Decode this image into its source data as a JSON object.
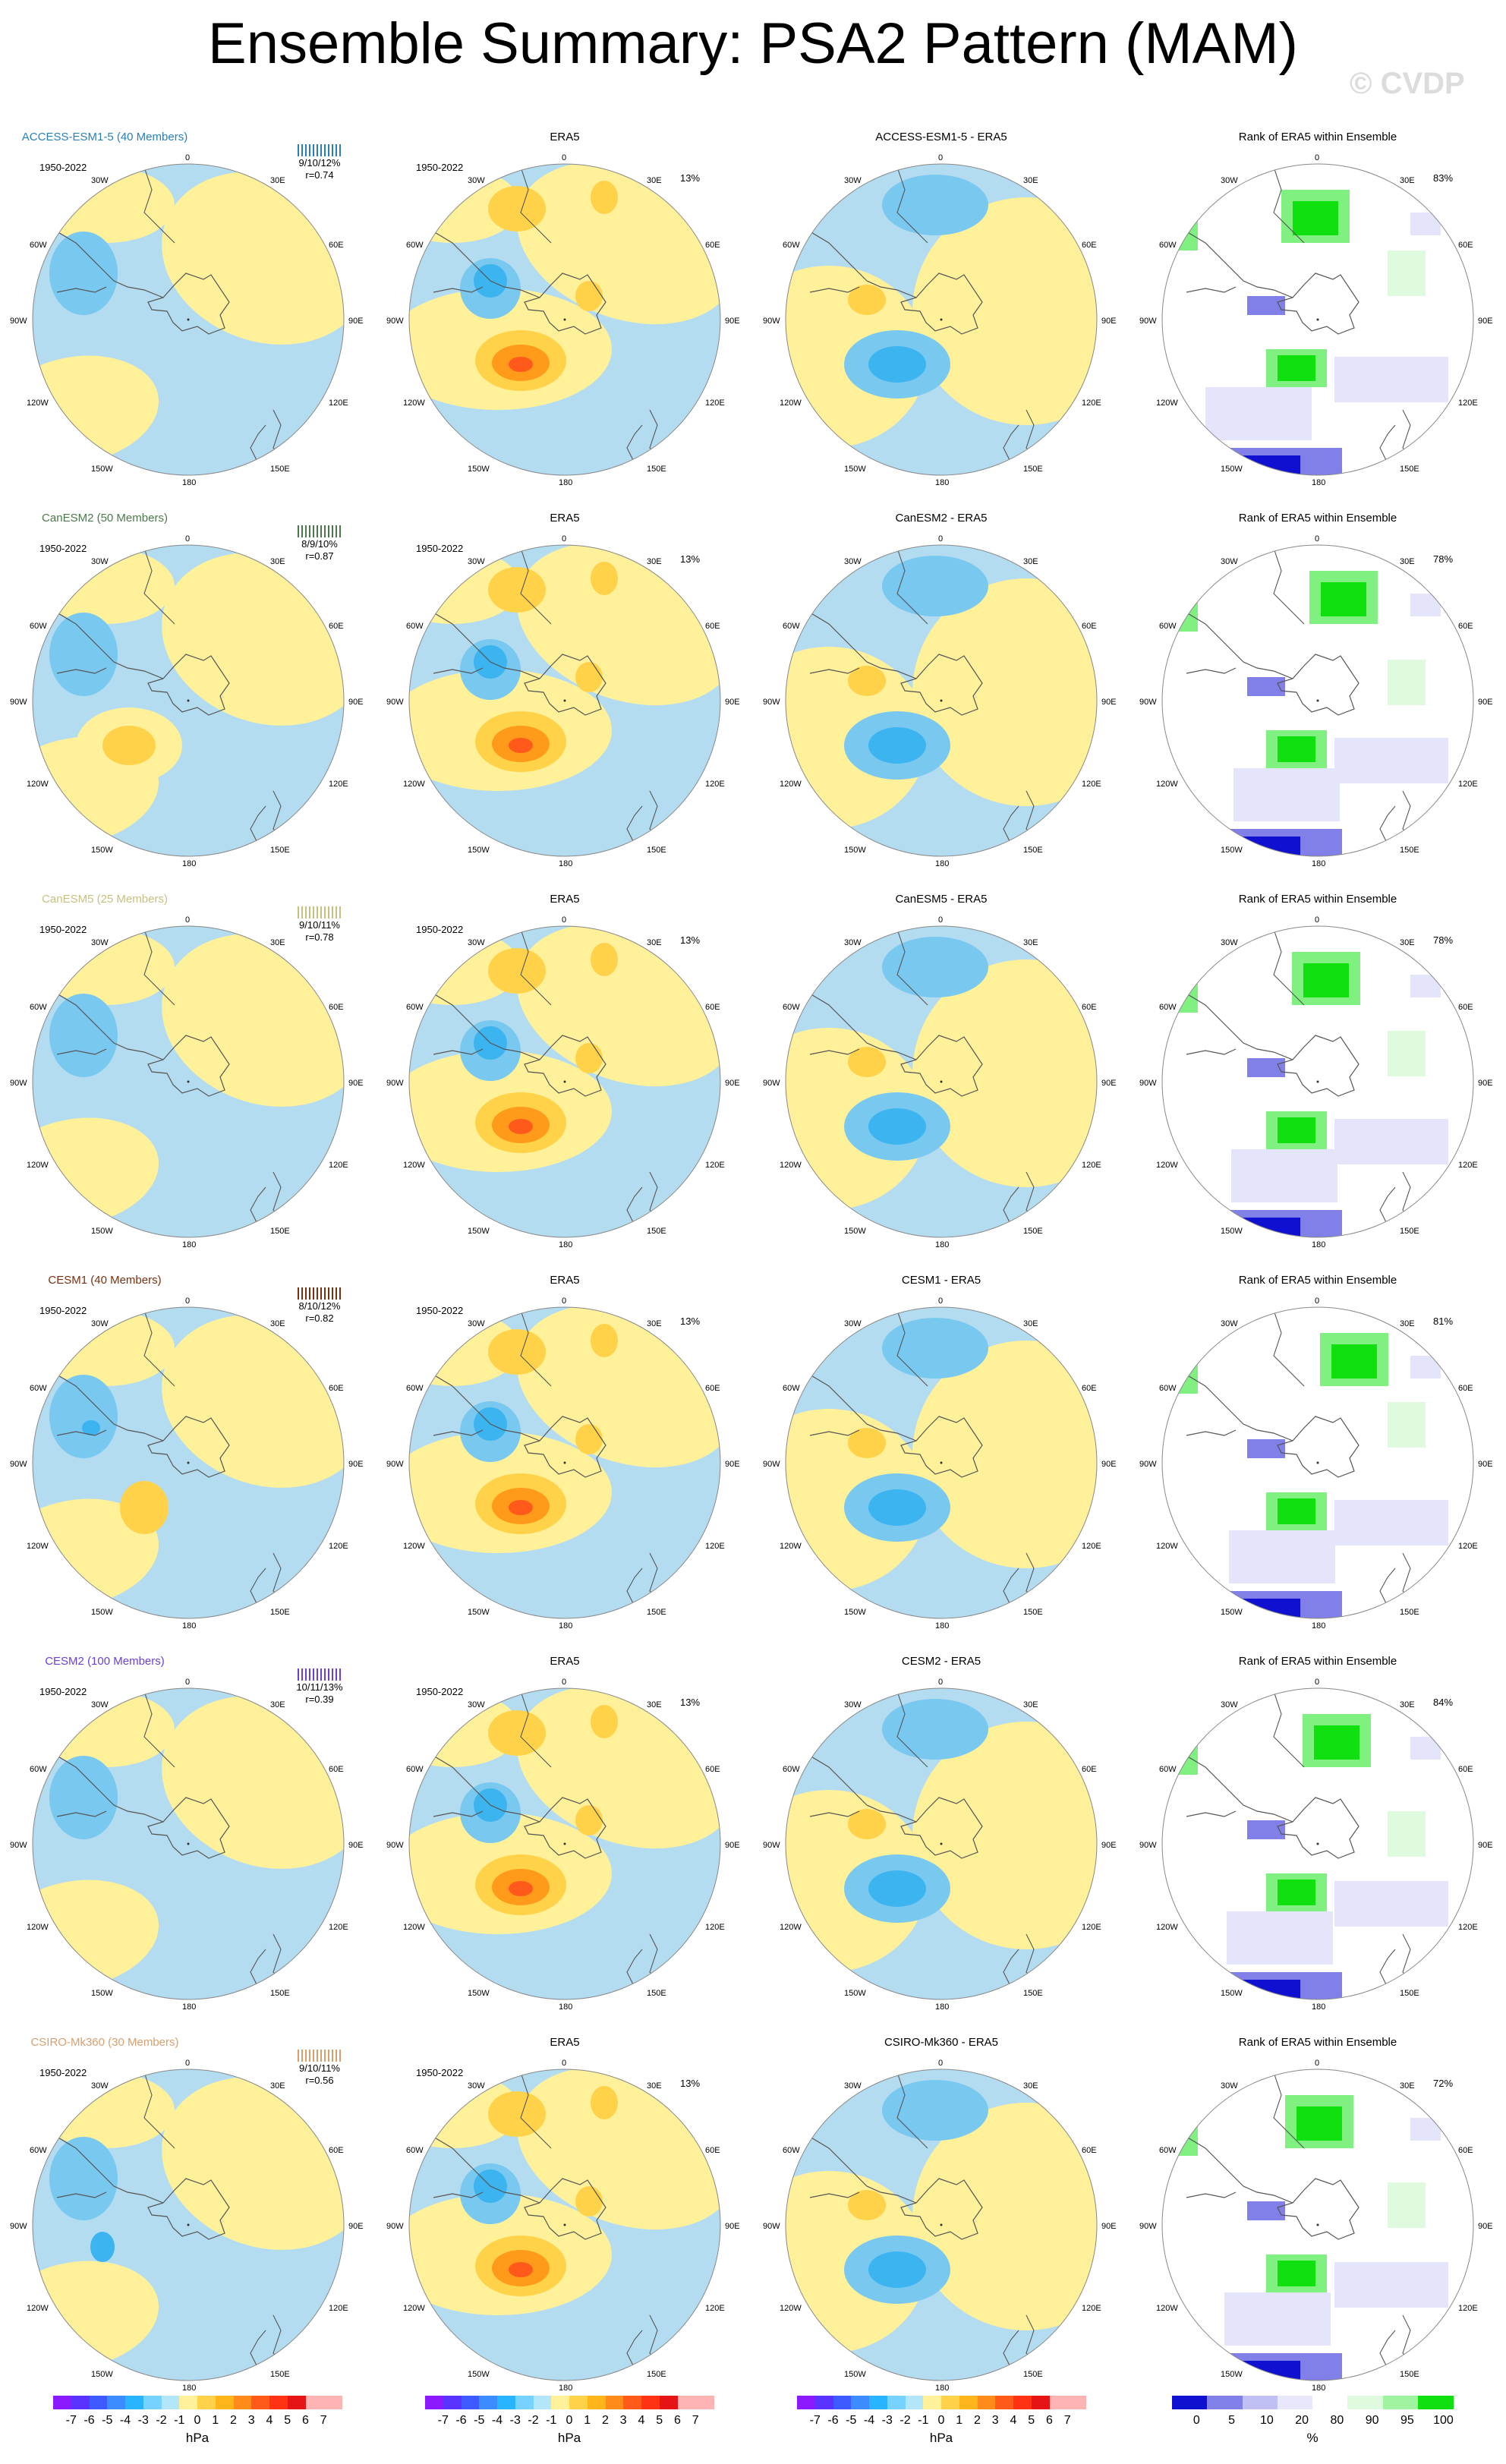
{
  "title": "Ensemble Summary: PSA2 Pattern (MAM)",
  "watermark": "© CVDP",
  "colors": {
    "title_ACCESS": "#2b7fb8",
    "title_CanESM2": "#4a7a4a",
    "title_CanESM5": "#c8c080",
    "title_CESM1": "#7a3010",
    "title_CESM2": "#6a40d8",
    "title_CSIRO": "#d8a070",
    "neg1": "#b4dcf0",
    "neg2": "#78c8f0",
    "neg3": "#3cb4f0",
    "pos1": "#fff09a",
    "pos2": "#ffd24a",
    "pos3": "#ff9a1a",
    "pos4": "#ff5a1a",
    "rank_blue1": "#e4e4fa",
    "rank_blue2": "#8080e8",
    "rank_blue3": "#1010d0",
    "rank_green1": "#e0fae0",
    "rank_green2": "#80f080",
    "rank_green3": "#10e010"
  },
  "labels": {
    "years": "1950-2022",
    "era5": "ERA5",
    "rank_title": "Rank of ERA5 within Ensemble",
    "lon": {
      "top": "0",
      "t30w": "30W",
      "t30e": "30E",
      "l60w": "60W",
      "r60e": "60E",
      "l90w": "90W",
      "r90e": "90E",
      "l120w": "120W",
      "r120e": "120E",
      "b150w": "150W",
      "b150e": "150E",
      "bottom": "180"
    }
  },
  "rows": [
    {
      "model_title": "ACCESS-ESM1-5 (40 Members)",
      "stats_line1": "9/10/12%",
      "stats_line2": "r=0.74",
      "era5_pct": "13%",
      "diff_title": "ACCESS-ESM1-5 - ERA5",
      "rank_pct": "83%",
      "color_key": "title_ACCESS"
    },
    {
      "model_title": "CanESM2 (50 Members)",
      "stats_line1": "8/9/10%",
      "stats_line2": "r=0.87",
      "era5_pct": "13%",
      "diff_title": "CanESM2 - ERA5",
      "rank_pct": "78%",
      "color_key": "title_CanESM2"
    },
    {
      "model_title": "CanESM5 (25 Members)",
      "stats_line1": "9/10/11%",
      "stats_line2": "r=0.78",
      "era5_pct": "13%",
      "diff_title": "CanESM5 - ERA5",
      "rank_pct": "78%",
      "color_key": "title_CanESM5"
    },
    {
      "model_title": "CESM1 (40 Members)",
      "stats_line1": "8/10/12%",
      "stats_line2": "r=0.82",
      "era5_pct": "13%",
      "diff_title": "CESM1 - ERA5",
      "rank_pct": "81%",
      "color_key": "title_CESM1"
    },
    {
      "model_title": "CESM2 (100 Members)",
      "stats_line1": "10/11/13%",
      "stats_line2": "r=0.39",
      "era5_pct": "13%",
      "diff_title": "CESM2 - ERA5",
      "rank_pct": "84%",
      "color_key": "title_CESM2"
    },
    {
      "model_title": "CSIRO-Mk360 (30 Members)",
      "stats_line1": "9/10/11%",
      "stats_line2": "r=0.56",
      "era5_pct": "13%",
      "diff_title": "CSIRO-Mk360 - ERA5",
      "rank_pct": "72%",
      "color_key": "title_CSIRO"
    }
  ],
  "colorbar_hpa": {
    "ticks": [
      "-7",
      "-6",
      "-5",
      "-4",
      "-3",
      "-2",
      "-1",
      "0",
      "1",
      "2",
      "3",
      "4",
      "5",
      "6",
      "7"
    ],
    "unit": "hPa"
  },
  "colorbar_rank": {
    "ticks": [
      "0",
      "5",
      "10",
      "20",
      "80",
      "90",
      "95",
      "100"
    ],
    "unit": "%"
  }
}
